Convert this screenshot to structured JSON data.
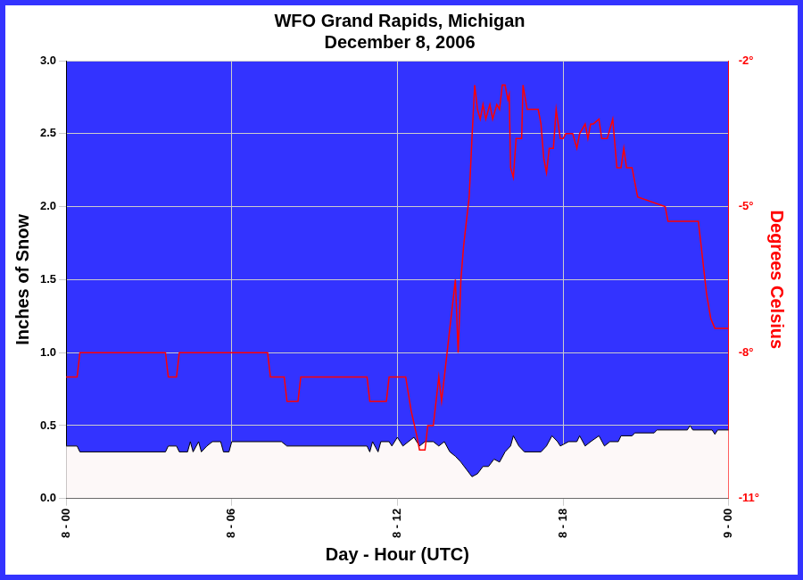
{
  "chart_data": {
    "type": "line",
    "title": [
      "WFO Grand Rapids, Michigan",
      "December 8, 2006"
    ],
    "x_label": "Day - Hour (UTC)",
    "y_label": "Inches of Snow",
    "y2_label": "Degrees Celsius",
    "xlim": [
      0,
      24
    ],
    "xticks": [
      {
        "value": 0,
        "label": "8 - 00"
      },
      {
        "value": 6,
        "label": "8 - 06"
      },
      {
        "value": 12,
        "label": "8 - 12"
      },
      {
        "value": 18,
        "label": "8 - 18"
      },
      {
        "value": 24,
        "label": "9 - 00"
      }
    ],
    "ylim": [
      0,
      3
    ],
    "yticks": [
      {
        "value": 0,
        "label": "0.0"
      },
      0.5,
      {
        "value": 1,
        "label": "1.0"
      },
      1.5,
      {
        "value": 2,
        "label": "2.0"
      },
      2.5,
      {
        "value": 3,
        "label": "3.0"
      }
    ],
    "y2lim": [
      -11,
      -2
    ],
    "y2ticks": [
      {
        "value": -11,
        "label": "-11°"
      },
      {
        "value": -8,
        "label": "-8°"
      },
      {
        "value": -5,
        "label": "-5°"
      },
      {
        "value": -2,
        "label": "-2°"
      }
    ],
    "grid": true,
    "series": [
      {
        "type": "area",
        "color": "#fdf8f8",
        "x": [
          0,
          0.4,
          0.5,
          3.6,
          3.7,
          4.0,
          4.1,
          4.4,
          4.5,
          4.6,
          4.8,
          4.9,
          5.1,
          5.3,
          5.6,
          5.7,
          5.9,
          6.0,
          7.8,
          8.0,
          10.9,
          11.0,
          11.1,
          11.3,
          11.4,
          11.7,
          11.8,
          12.0,
          12.2,
          12.4,
          12.6,
          12.8,
          13.0,
          13.3,
          13.5,
          13.7,
          13.9,
          14.1,
          14.3,
          14.5,
          14.7,
          14.9,
          15.1,
          15.3,
          15.5,
          15.7,
          15.9,
          16.1,
          16.2,
          16.4,
          16.6,
          17.2,
          17.4,
          17.6,
          17.8,
          17.9,
          18.2,
          18.5,
          18.6,
          18.8,
          19.0,
          19.3,
          19.5,
          19.7,
          20.0,
          20.1,
          20.5,
          20.6,
          21.3,
          21.4,
          22.5,
          22.6,
          22.7,
          23.4,
          23.5,
          23.6,
          24
        ],
        "values": [
          0.36,
          0.36,
          0.32,
          0.32,
          0.36,
          0.36,
          0.32,
          0.32,
          0.39,
          0.32,
          0.39,
          0.32,
          0.36,
          0.39,
          0.39,
          0.32,
          0.32,
          0.39,
          0.39,
          0.36,
          0.36,
          0.32,
          0.39,
          0.32,
          0.39,
          0.39,
          0.36,
          0.42,
          0.36,
          0.39,
          0.42,
          0.36,
          0.39,
          0.39,
          0.36,
          0.39,
          0.32,
          0.29,
          0.25,
          0.2,
          0.15,
          0.17,
          0.22,
          0.22,
          0.27,
          0.25,
          0.32,
          0.36,
          0.43,
          0.36,
          0.32,
          0.32,
          0.36,
          0.43,
          0.39,
          0.36,
          0.39,
          0.39,
          0.43,
          0.36,
          0.39,
          0.43,
          0.36,
          0.39,
          0.39,
          0.43,
          0.43,
          0.45,
          0.45,
          0.47,
          0.47,
          0.5,
          0.47,
          0.47,
          0.44,
          0.47,
          0.47
        ]
      },
      {
        "type": "line",
        "color": "#ff0000",
        "axis": "y2",
        "x": [
          0,
          0.4,
          0.5,
          3.6,
          3.7,
          4.0,
          4.1,
          7.3,
          7.4,
          7.9,
          8.0,
          8.4,
          8.5,
          10.9,
          11.0,
          11.6,
          11.7,
          12.3,
          12.5,
          12.7,
          12.8,
          13.0,
          13.1,
          13.3,
          13.5,
          13.6,
          13.8,
          14.0,
          14.1,
          14.2,
          14.3,
          14.4,
          14.5,
          14.6,
          14.7,
          14.8,
          14.9,
          15.0,
          15.1,
          15.2,
          15.35,
          15.45,
          15.6,
          15.7,
          15.8,
          15.9,
          16.0,
          16.05,
          16.1,
          16.2,
          16.3,
          16.5,
          16.55,
          16.7,
          17.1,
          17.2,
          17.3,
          17.4,
          17.5,
          17.65,
          17.75,
          17.9,
          18.0,
          18.1,
          18.35,
          18.5,
          18.6,
          18.8,
          18.9,
          19.0,
          19.1,
          19.3,
          19.4,
          19.6,
          19.8,
          19.95,
          20.1,
          20.2,
          20.3,
          20.5,
          20.6,
          20.7,
          21.7,
          21.8,
          22.9,
          23.0,
          23.2,
          23.35,
          23.5,
          24
        ],
        "values": [
          -8.5,
          -8.5,
          -8,
          -8,
          -8.5,
          -8.5,
          -8,
          -8,
          -8.5,
          -8.5,
          -9,
          -9,
          -8.5,
          -8.5,
          -9,
          -9,
          -8.5,
          -8.5,
          -9.2,
          -9.7,
          -10,
          -10,
          -9.5,
          -9.5,
          -8.5,
          -9,
          -8,
          -7,
          -6.5,
          -8,
          -6.5,
          -5.8,
          -5.3,
          -4.8,
          -3.6,
          -2.5,
          -3,
          -3.2,
          -2.9,
          -3.2,
          -2.9,
          -3.2,
          -2.9,
          -3,
          -2.5,
          -2.5,
          -2.8,
          -2.7,
          -4.2,
          -4.4,
          -3.6,
          -3.6,
          -2.5,
          -3,
          -3,
          -3.3,
          -4,
          -4.3,
          -3.8,
          -3.8,
          -3,
          -3.6,
          -3.6,
          -3.5,
          -3.5,
          -3.8,
          -3.5,
          -3.3,
          -3.6,
          -3.3,
          -3.3,
          -3.2,
          -3.6,
          -3.6,
          -3.2,
          -4.2,
          -4.2,
          -3.8,
          -4.2,
          -4.2,
          -4.5,
          -4.8,
          -5,
          -5.3,
          -5.3,
          -5.8,
          -6.8,
          -7.3,
          -7.5,
          -7.5
        ]
      }
    ]
  }
}
